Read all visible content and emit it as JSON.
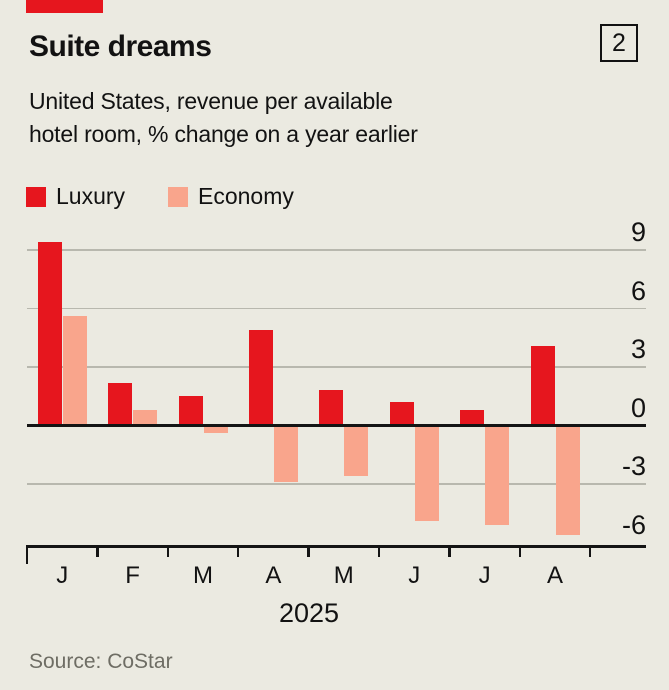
{
  "header": {
    "title": "Suite dreams",
    "figure_number": "2",
    "subtitle_lines": [
      "United States, revenue per available",
      "hotel room, % change on a year earlier"
    ]
  },
  "legend": {
    "items": [
      {
        "label": "Luxury",
        "color": "#e6161e"
      },
      {
        "label": "Economy",
        "color": "#f9a58c"
      }
    ]
  },
  "chart_data": {
    "type": "bar",
    "title": "Suite dreams",
    "subtitle": "United States, revenue per available hotel room, % change on a year earlier",
    "categories": [
      "J",
      "F",
      "M",
      "A",
      "M",
      "J",
      "J",
      "A"
    ],
    "series": [
      {
        "name": "Luxury",
        "color": "#e6161e",
        "values": [
          9.4,
          2.2,
          1.5,
          4.9,
          1.8,
          1.2,
          0.8,
          4.1
        ]
      },
      {
        "name": "Economy",
        "color": "#f9a58c",
        "values": [
          5.6,
          0.8,
          -0.4,
          -2.9,
          -2.6,
          -4.9,
          -5.1,
          -5.6
        ]
      }
    ],
    "xlabel": "2025",
    "ylabel": "",
    "ylim": [
      -6,
      9
    ],
    "yticks": [
      9,
      6,
      3,
      0,
      -3,
      -6
    ],
    "gridline_values": [
      9,
      6,
      3,
      -3
    ],
    "grid": true,
    "legend_position": "top-left",
    "zero_baseline": true
  },
  "footer": {
    "source": "Source: CoStar"
  },
  "colors": {
    "background": "#ebeae1",
    "brand_red": "#e6161e",
    "gridline": "#b8b8ae",
    "axis": "#141414",
    "text": "#121212",
    "source_text": "#6e6d64"
  }
}
